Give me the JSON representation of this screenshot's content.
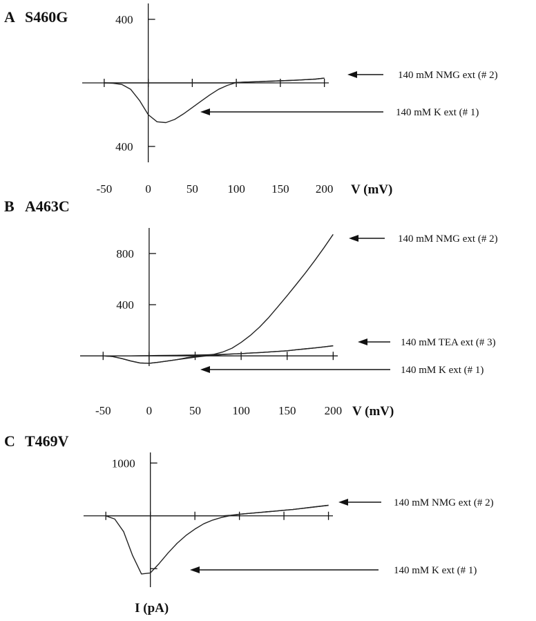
{
  "chart_data": [
    {
      "type": "line",
      "label": "A",
      "title": "S460G",
      "xlabel": "V (mV)",
      "x": [
        -50,
        -40,
        -30,
        -20,
        -10,
        0,
        10,
        20,
        30,
        40,
        50,
        60,
        70,
        80,
        90,
        100,
        110,
        120,
        130,
        140,
        150,
        160,
        170,
        180,
        190,
        200
      ],
      "xlim": [
        -75,
        205
      ],
      "ylim": [
        -500,
        500
      ],
      "xticks": [
        -50,
        0,
        50,
        100,
        150,
        200
      ],
      "xtick_labels": true,
      "yticks": [
        400,
        {
          "value": -400,
          "label": "400"
        }
      ],
      "series": [
        {
          "name": "140 mM NMG ext (# 2)",
          "color": "#222222",
          "values": [
            0,
            0,
            0,
            0,
            0,
            0,
            0,
            0,
            0,
            0,
            0,
            0,
            0,
            0,
            0,
            2,
            5,
            7,
            9,
            11,
            13,
            15,
            18,
            21,
            24,
            30
          ]
        },
        {
          "name": "140 mM K ext (# 1)",
          "color": "#222222",
          "values": [
            0,
            -2,
            -10,
            -40,
            -110,
            -200,
            -245,
            -250,
            -230,
            -195,
            -155,
            -115,
            -75,
            -40,
            -15,
            2,
            5,
            7,
            9,
            11,
            13,
            15,
            18,
            21,
            24,
            30
          ]
        }
      ]
    },
    {
      "type": "line",
      "label": "B",
      "title": "A463C",
      "xlabel": "V (mV)",
      "x": [
        -50,
        -40,
        -30,
        -20,
        -10,
        0,
        10,
        20,
        30,
        40,
        50,
        60,
        70,
        80,
        90,
        100,
        110,
        120,
        130,
        140,
        150,
        160,
        170,
        180,
        190,
        200
      ],
      "xlim": [
        -75,
        205
      ],
      "ylim": [
        -80,
        1000
      ],
      "xticks": [
        -50,
        0,
        50,
        100,
        150,
        200
      ],
      "xtick_labels": true,
      "yticks": [
        400,
        800
      ],
      "series": [
        {
          "name": "140 mM NMG ext (# 2)",
          "color": "#222222",
          "values": [
            0,
            -5,
            -20,
            -40,
            -55,
            -58,
            -50,
            -40,
            -30,
            -15,
            -5,
            3,
            12,
            30,
            60,
            105,
            160,
            225,
            300,
            385,
            470,
            560,
            650,
            745,
            845,
            950
          ]
        },
        {
          "name": "140 mM TEA ext (# 3)",
          "color": "#222222",
          "values": [
            0,
            0,
            0,
            0,
            1,
            2,
            3,
            4,
            5,
            6,
            7,
            8,
            10,
            12,
            15,
            18,
            22,
            26,
            30,
            35,
            40,
            48,
            55,
            62,
            70,
            80
          ]
        },
        {
          "name": "140 mM K ext (# 1)",
          "color": "#222222",
          "values": [
            0,
            -5,
            -20,
            -40,
            -55,
            -58,
            -50,
            -40,
            -30,
            -20,
            -10,
            -2,
            5,
            10,
            15,
            18,
            22,
            26,
            30,
            35,
            40,
            48,
            55,
            62,
            70,
            78
          ]
        }
      ]
    },
    {
      "type": "line",
      "label": "C",
      "title": "T469V",
      "ylabel": "I (pA)",
      "x": [
        -50,
        -40,
        -30,
        -20,
        -10,
        0,
        10,
        20,
        30,
        40,
        50,
        60,
        70,
        80,
        90,
        100,
        110,
        120,
        130,
        140,
        150,
        160,
        170,
        180,
        190,
        200
      ],
      "xlim": [
        -75,
        205
      ],
      "ylim": [
        -1350,
        1200
      ],
      "xticks": [
        -50,
        0,
        50,
        100,
        150,
        200
      ],
      "xtick_labels": false,
      "yticks": [
        1000,
        {
          "value": -1000,
          "label": null
        }
      ],
      "series": [
        {
          "name": "140 mM NMG ext (# 2)",
          "color": "#222222",
          "values": [
            0,
            0,
            0,
            0,
            0,
            0,
            0,
            0,
            0,
            0,
            0,
            0,
            0,
            0,
            10,
            30,
            45,
            60,
            75,
            90,
            105,
            120,
            140,
            160,
            180,
            200
          ]
        },
        {
          "name": "140 mM K ext (# 1)",
          "color": "#222222",
          "values": [
            0,
            -60,
            -300,
            -750,
            -1100,
            -1080,
            -900,
            -700,
            -520,
            -370,
            -250,
            -150,
            -80,
            -30,
            5,
            30,
            45,
            60,
            75,
            90,
            105,
            120,
            140,
            160,
            180,
            200
          ]
        }
      ]
    }
  ]
}
